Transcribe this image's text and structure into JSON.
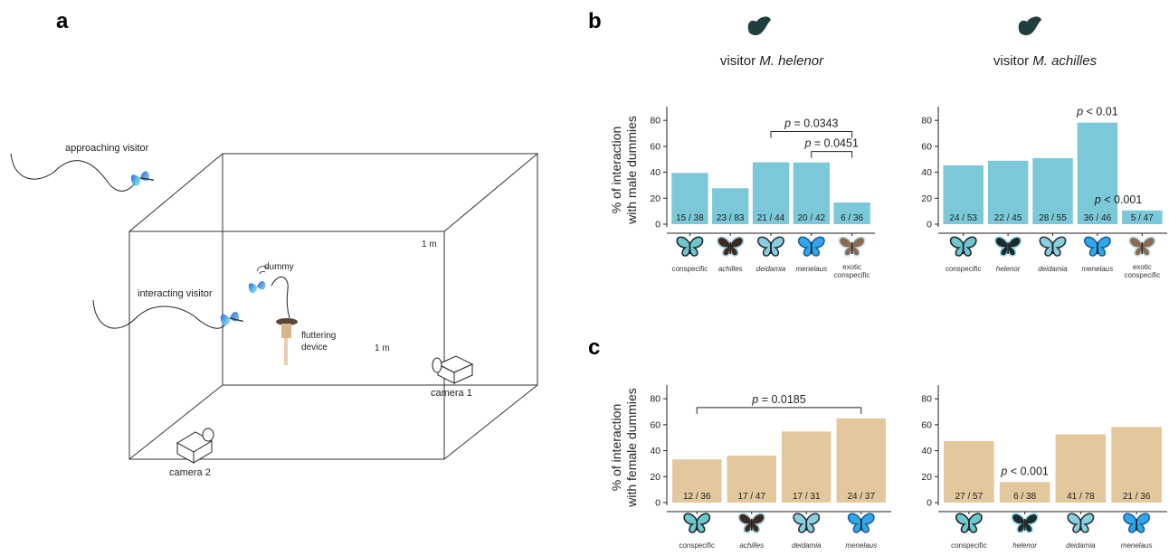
{
  "panel_labels": {
    "a": "a",
    "b": "b",
    "c": "c"
  },
  "diagram": {
    "approaching_visitor": "approaching visitor",
    "interacting_visitor": "interacting visitor",
    "dummy": "dummy",
    "fluttering_device_line1": "fluttering",
    "fluttering_device_line2": "device",
    "dim_1": "1 m",
    "dim_2": "1 m",
    "camera_1": "camera 1",
    "camera_2": "camera 2"
  },
  "titles": {
    "helenor_prefix": "visitor ",
    "helenor_species": "M. helenor",
    "achilles_prefix": "visitor ",
    "achilles_species": "M. achilles"
  },
  "ylabels": {
    "male_line1": "% of interaction",
    "male_line2": "with male dummies",
    "female_line1": "% of interaction",
    "female_line2": "with female dummies"
  },
  "colors": {
    "male_bar": "#7ac8d8",
    "female_bar": "#e3c89e",
    "axis": "#222222"
  },
  "chart_data": [
    {
      "id": "male_helenor",
      "type": "bar",
      "panel": "b",
      "title": "visitor M. helenor",
      "ylabel": "% of interaction with male dummies",
      "ylim": [
        0,
        85
      ],
      "yticks": [
        0,
        20,
        40,
        60,
        80
      ],
      "categories": [
        {
          "name": "conspecific",
          "italic": false
        },
        {
          "name": "achilles",
          "italic": true
        },
        {
          "name": "deidamia",
          "italic": true
        },
        {
          "name": "menelaus",
          "italic": true
        },
        {
          "name": "exotic conspecific",
          "italic": false,
          "lines": [
            "exotic",
            "conspecific"
          ]
        }
      ],
      "values": [
        39.5,
        27.7,
        47.7,
        47.6,
        16.7
      ],
      "counts": [
        "15 / 38",
        "23 / 83",
        "21 / 44",
        "20 / 42",
        "6 / 36"
      ],
      "brackets": [
        {
          "from": 2,
          "to": 4,
          "label": "p = 0.0343",
          "level": 2
        },
        {
          "from": 3,
          "to": 4,
          "label": "p = 0.0451",
          "level": 1
        }
      ],
      "bar_annotations": []
    },
    {
      "id": "male_achilles",
      "type": "bar",
      "panel": "b",
      "title": "visitor M. achilles",
      "ylabel": "",
      "ylim": [
        0,
        85
      ],
      "yticks": [
        0,
        20,
        40,
        60,
        80
      ],
      "categories": [
        {
          "name": "conspecific",
          "italic": false
        },
        {
          "name": "helenor",
          "italic": true
        },
        {
          "name": "deidamia",
          "italic": true
        },
        {
          "name": "menelaus",
          "italic": true
        },
        {
          "name": "exotic conspecific",
          "italic": false,
          "lines": [
            "exotic",
            "conspecific"
          ]
        }
      ],
      "values": [
        45.3,
        48.9,
        50.9,
        78.3,
        10.6
      ],
      "counts": [
        "24 / 53",
        "22 / 45",
        "28 / 55",
        "36 / 46",
        "5 / 47"
      ],
      "brackets": [],
      "bar_annotations": [
        {
          "bar": 3,
          "label": "p < 0.01"
        },
        {
          "bar": 4,
          "label": "p < 0.001"
        }
      ]
    },
    {
      "id": "female_helenor",
      "type": "bar",
      "panel": "c",
      "title": "",
      "ylabel": "% of interaction with female dummies",
      "ylim": [
        0,
        85
      ],
      "yticks": [
        0,
        20,
        40,
        60,
        80
      ],
      "categories": [
        {
          "name": "conspecific",
          "italic": false
        },
        {
          "name": "achilles",
          "italic": true
        },
        {
          "name": "deidamia",
          "italic": true
        },
        {
          "name": "menelaus",
          "italic": true
        }
      ],
      "values": [
        33.3,
        36.2,
        54.8,
        64.9
      ],
      "counts": [
        "12 / 36",
        "17 / 47",
        "17 / 31",
        "24 / 37"
      ],
      "brackets": [
        {
          "from": 0,
          "to": 3,
          "label": "p = 0.0185",
          "level": 1
        }
      ],
      "bar_annotations": []
    },
    {
      "id": "female_achilles",
      "type": "bar",
      "panel": "c",
      "title": "",
      "ylabel": "",
      "ylim": [
        0,
        85
      ],
      "yticks": [
        0,
        20,
        40,
        60,
        80
      ],
      "categories": [
        {
          "name": "conspecific",
          "italic": false
        },
        {
          "name": "helenor",
          "italic": true
        },
        {
          "name": "deidamia",
          "italic": true
        },
        {
          "name": "menelaus",
          "italic": true
        }
      ],
      "values": [
        47.4,
        15.8,
        52.6,
        58.3
      ],
      "counts": [
        "27 / 57",
        "6 / 38",
        "41 / 78",
        "21 / 36"
      ],
      "brackets": [],
      "bar_annotations": [
        {
          "bar": 1,
          "label": "p < 0.001"
        }
      ]
    }
  ]
}
